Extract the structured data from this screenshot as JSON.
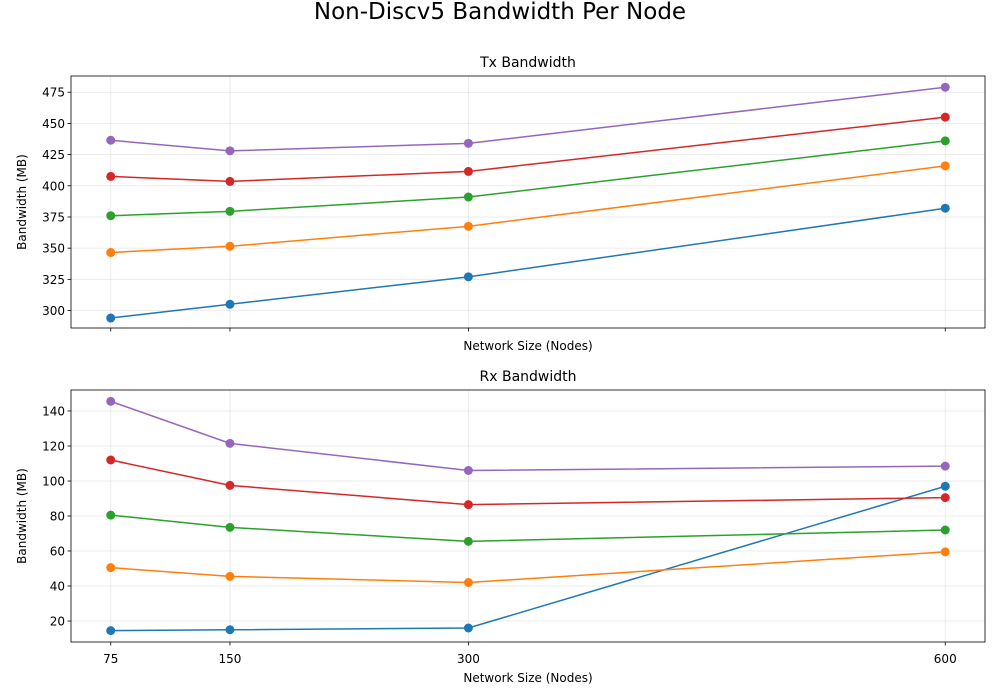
{
  "title": "Non-Discv5 Bandwidth Per Node",
  "chart_data": [
    {
      "type": "line",
      "title": "Tx Bandwidth",
      "xlabel": "Network Size (Nodes)",
      "ylabel": "Bandwidth (MB)",
      "x": [
        75,
        150,
        300,
        600
      ],
      "x_tick_labels_visible": false,
      "xlim": [
        50,
        625
      ],
      "ylim": [
        286,
        488
      ],
      "yticks": [
        300,
        325,
        350,
        375,
        400,
        425,
        450,
        475
      ],
      "grid": true,
      "series": [
        {
          "color": "#1f77b4",
          "values": [
            294,
            305,
            327,
            382
          ]
        },
        {
          "color": "#ff7f0e",
          "values": [
            346.5,
            351.5,
            367.5,
            416
          ]
        },
        {
          "color": "#2ca02c",
          "values": [
            376,
            379.5,
            391,
            436
          ]
        },
        {
          "color": "#d62728",
          "values": [
            407.5,
            403.5,
            411.5,
            455
          ]
        },
        {
          "color": "#9467bd",
          "values": [
            436.5,
            428,
            434,
            479
          ]
        }
      ]
    },
    {
      "type": "line",
      "title": "Rx Bandwidth",
      "xlabel": "Network Size (Nodes)",
      "ylabel": "Bandwidth (MB)",
      "x": [
        75,
        150,
        300,
        600
      ],
      "x_tick_labels_visible": true,
      "xticks": [
        75,
        150,
        300,
        600
      ],
      "xlim": [
        50,
        625
      ],
      "ylim": [
        8,
        152
      ],
      "yticks": [
        20,
        40,
        60,
        80,
        100,
        120,
        140
      ],
      "grid": true,
      "series": [
        {
          "color": "#1f77b4",
          "values": [
            14.5,
            15,
            16,
            97
          ]
        },
        {
          "color": "#ff7f0e",
          "values": [
            50.5,
            45.5,
            42,
            59.5
          ]
        },
        {
          "color": "#2ca02c",
          "values": [
            80.5,
            73.5,
            65.5,
            72
          ]
        },
        {
          "color": "#d62728",
          "values": [
            112,
            97.5,
            86.5,
            90.5
          ]
        },
        {
          "color": "#9467bd",
          "values": [
            145.5,
            121.5,
            106,
            108.5
          ]
        }
      ]
    }
  ]
}
